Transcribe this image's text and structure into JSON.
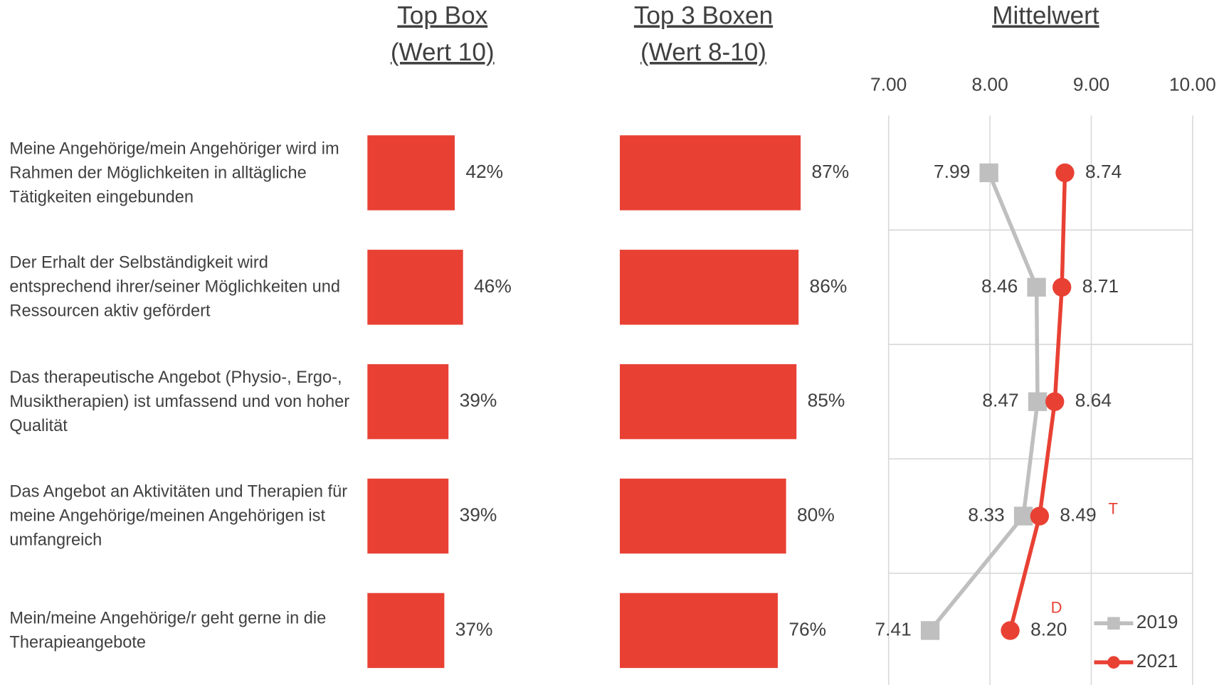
{
  "chart_data": [
    {
      "type": "bar",
      "title": [
        "Top Box",
        "(Wert 10)"
      ],
      "categories": [
        "Meine Angehörige/mein Angehöriger wird im Rahmen der Möglichkeiten in alltägliche Tätigkeiten eingebunden",
        "Der Erhalt der Selbständigkeit wird entsprechend ihrer/seiner Möglichkeiten und Ressourcen aktiv gefördert",
        "Das therapeutische Angebot (Physio-, Ergo-, Musiktherapien) ist umfassend und von hoher Qualität",
        "Das Angebot an Aktivitäten und Therapien für meine Angehörige/meinen Angehörigen ist umfangreich",
        "Mein/meine Angehörige/r geht gerne in die Therapieangebote"
      ],
      "values": [
        42,
        46,
        39,
        39,
        37
      ],
      "value_labels": [
        "42%",
        "46%",
        "39%",
        "39%",
        "37%"
      ],
      "color": "#e84134"
    },
    {
      "type": "bar",
      "title": [
        "Top 3 Boxen",
        "(Wert 8-10)"
      ],
      "values": [
        87,
        86,
        85,
        80,
        76
      ],
      "value_labels": [
        "87%",
        "86%",
        "85%",
        "80%",
        "76%"
      ],
      "color": "#e84134"
    },
    {
      "type": "line",
      "title": [
        "Mittelwert"
      ],
      "xlim": [
        7,
        10
      ],
      "xticks": [
        {
          "value": 7,
          "label": "7.00"
        },
        {
          "value": 8,
          "label": "8.00"
        },
        {
          "value": 9,
          "label": "9.00"
        },
        {
          "value": 10,
          "label": "10.00"
        }
      ],
      "grid": true,
      "legend": "lower right",
      "series": [
        {
          "name": "2019",
          "color": "#bfbfbf",
          "marker": "square",
          "values": [
            7.99,
            8.46,
            8.47,
            8.33,
            7.41
          ],
          "value_labels": [
            "7.99",
            "8.46",
            "8.47",
            "8.33",
            "7.41"
          ]
        },
        {
          "name": "2021",
          "color": "#e84134",
          "marker": "circle",
          "values": [
            8.74,
            8.71,
            8.64,
            8.49,
            8.2
          ],
          "value_labels": [
            "8.74",
            "8.71",
            "8.64",
            "8.49",
            "8.20"
          ]
        }
      ],
      "annotations": [
        {
          "text": "T",
          "index": 3
        },
        {
          "text": "D",
          "index": 4
        }
      ]
    }
  ]
}
